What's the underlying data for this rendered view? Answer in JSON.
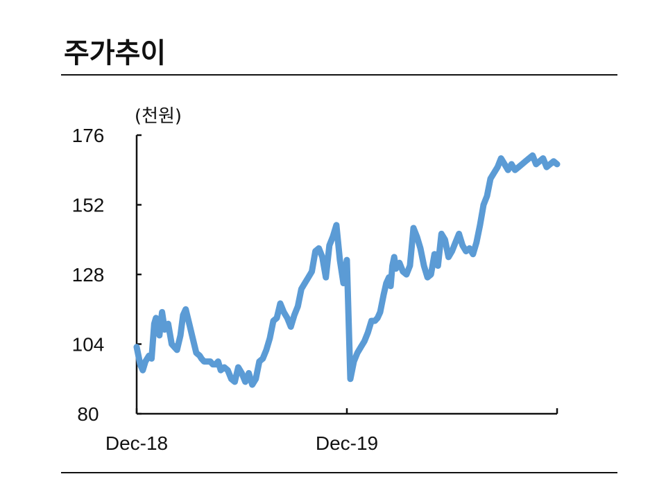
{
  "page": {
    "title": "주가추이"
  },
  "chart_data": {
    "type": "line",
    "title": "주가추이",
    "ylabel": "(천원)",
    "xlabel": "",
    "ylim": [
      80,
      176
    ],
    "yticks": [
      80,
      104,
      128,
      152,
      176
    ],
    "xlim": [
      0,
      24
    ],
    "xticks": [
      {
        "x": 0,
        "label": "Dec-18"
      },
      {
        "x": 12,
        "label": "Dec-19"
      }
    ],
    "grid": false,
    "color": "#5b9bd5",
    "series": [
      {
        "x": [
          0,
          0.2,
          0.35,
          0.5,
          0.7,
          0.85,
          1.0,
          1.1,
          1.3,
          1.45,
          1.6,
          1.8,
          2.0,
          2.15,
          2.3,
          2.5,
          2.65,
          2.8,
          3.0,
          3.2,
          3.4,
          3.6,
          3.7,
          3.85,
          4.0,
          4.2,
          4.35,
          4.5,
          4.65,
          4.8,
          5.0,
          5.2,
          5.4,
          5.6,
          5.8,
          6.0,
          6.2,
          6.4,
          6.6,
          6.8,
          7.0,
          7.2,
          7.4,
          7.6,
          7.8,
          8.0,
          8.2,
          8.4,
          8.6,
          8.8,
          9.0,
          9.2,
          9.4,
          9.6,
          9.8,
          10.0,
          10.2,
          10.4,
          10.6,
          10.8,
          11.0,
          11.2,
          11.4,
          11.6,
          11.8,
          12.0,
          12.2,
          12.4,
          12.6,
          12.8,
          13.0,
          13.2,
          13.4,
          13.6,
          13.75,
          13.9,
          14.1,
          14.25,
          14.4,
          14.5,
          14.6,
          14.7,
          14.8,
          15.0,
          15.2,
          15.4,
          15.6,
          15.8,
          16.0,
          16.2,
          16.4,
          16.6,
          16.8,
          17.0,
          17.2,
          17.4,
          17.6,
          17.8,
          18.0,
          18.2,
          18.4,
          18.6,
          18.8,
          19.0,
          19.2,
          19.4,
          19.6,
          19.8,
          20.0,
          20.2,
          20.4,
          20.6,
          20.8,
          21.0,
          21.2,
          21.4,
          21.6,
          21.8,
          22.0,
          22.2,
          22.4,
          22.6,
          22.8,
          23.0,
          23.2,
          23.4,
          23.6,
          23.8,
          24.0
        ],
        "values": [
          103,
          97,
          95,
          98,
          100,
          99,
          111,
          113,
          107,
          115,
          109,
          111,
          104,
          103,
          102,
          107,
          114,
          116,
          111,
          106,
          101,
          100,
          99,
          98,
          98,
          98,
          97,
          97,
          98,
          95,
          96,
          95,
          92,
          91,
          96,
          94,
          91,
          94,
          90,
          92,
          98,
          99,
          102,
          106,
          112,
          113,
          118,
          115,
          113,
          110,
          114,
          117,
          123,
          125,
          127,
          129,
          136,
          137,
          134,
          127,
          138,
          141,
          145,
          133,
          125,
          133,
          92,
          98,
          101,
          103,
          105,
          108,
          112,
          112,
          113,
          115,
          121,
          125,
          127,
          124,
          131,
          134,
          130,
          132,
          129,
          128,
          131,
          144,
          141,
          137,
          131,
          127,
          128,
          135,
          131,
          142,
          140,
          134,
          136,
          139,
          142,
          138,
          136,
          137,
          135,
          139,
          145,
          152,
          155,
          161,
          163,
          165,
          168,
          166,
          164,
          166,
          164,
          165,
          166,
          167,
          168,
          169,
          166,
          167,
          168,
          165,
          166,
          167,
          166
        ]
      }
    ]
  }
}
